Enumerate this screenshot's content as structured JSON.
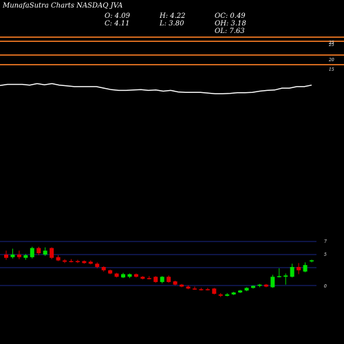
{
  "header": {
    "brand": "MunafaSutra Charts NASDAQ JVA",
    "open": "O: 4.09",
    "high": "H: 4.22",
    "close": "C: 4.11",
    "low": "L: 3.80",
    "oc": "OC: 0.49",
    "oh": "OH: 3.18",
    "ol": "OL: 7.63"
  },
  "colors": {
    "background": "#000000",
    "up": "#00e000",
    "down": "#e00000",
    "price_line": "#ffffff",
    "band_lines": "#d2691e",
    "grid_lines": "#1c2a8c"
  },
  "chart_data": [
    {
      "type": "line",
      "panel": "upper",
      "y_ticks": [
        "25",
        "25",
        "20",
        "15"
      ],
      "band_levels": [
        25,
        25,
        20
      ],
      "series": [
        {
          "values": [
            15.25,
            15.4,
            15.4,
            15.4,
            15.3,
            15.5,
            15.35,
            15.5,
            15.3,
            15.2,
            15.1,
            15.1,
            15.1,
            15.1,
            14.9,
            14.7,
            14.6,
            14.6,
            14.65,
            14.7,
            14.6,
            14.65,
            14.5,
            14.6,
            14.4,
            14.35,
            14.35,
            14.35,
            14.25,
            14.15,
            14.15,
            14.2,
            14.3,
            14.3,
            14.35,
            14.5,
            14.6,
            14.65,
            14.9,
            14.9,
            15.1,
            15.1,
            15.3
          ]
        }
      ]
    },
    {
      "type": "candlestick",
      "panel": "lower",
      "y_ticks": [
        "7",
        "5",
        "0"
      ],
      "candles": [
        {
          "o": 5.0,
          "h": 5.6,
          "l": 4.2,
          "c": 4.5
        },
        {
          "o": 4.6,
          "h": 5.9,
          "l": 4.4,
          "c": 5.0
        },
        {
          "o": 5.0,
          "h": 5.6,
          "l": 4.3,
          "c": 4.6
        },
        {
          "o": 4.5,
          "h": 5.1,
          "l": 4.2,
          "c": 4.9
        },
        {
          "o": 4.6,
          "h": 6.2,
          "l": 4.4,
          "c": 6.0
        },
        {
          "o": 6.0,
          "h": 6.2,
          "l": 4.9,
          "c": 5.2
        },
        {
          "o": 5.0,
          "h": 6.1,
          "l": 4.8,
          "c": 5.6
        },
        {
          "o": 6.0,
          "h": 6.1,
          "l": 4.3,
          "c": 4.5
        },
        {
          "o": 4.6,
          "h": 4.9,
          "l": 4.0,
          "c": 4.1
        },
        {
          "o": 4.1,
          "h": 4.3,
          "l": 3.7,
          "c": 3.9
        },
        {
          "o": 4.0,
          "h": 4.3,
          "l": 3.8,
          "c": 3.9
        },
        {
          "o": 4.0,
          "h": 4.2,
          "l": 3.7,
          "c": 3.9
        },
        {
          "o": 4.0,
          "h": 4.1,
          "l": 3.6,
          "c": 3.7
        },
        {
          "o": 3.9,
          "h": 4.1,
          "l": 3.5,
          "c": 3.6
        },
        {
          "o": 3.6,
          "h": 3.8,
          "l": 2.9,
          "c": 3.1
        },
        {
          "o": 3.1,
          "h": 3.2,
          "l": 2.4,
          "c": 2.6
        },
        {
          "o": 2.6,
          "h": 2.7,
          "l": 2.0,
          "c": 2.1
        },
        {
          "o": 2.1,
          "h": 2.2,
          "l": 1.5,
          "c": 1.6
        },
        {
          "o": 1.5,
          "h": 2.2,
          "l": 1.4,
          "c": 2.0
        },
        {
          "o": 1.6,
          "h": 2.1,
          "l": 1.4,
          "c": 2.0
        },
        {
          "o": 2.0,
          "h": 2.1,
          "l": 1.5,
          "c": 1.6
        },
        {
          "o": 1.6,
          "h": 1.7,
          "l": 1.2,
          "c": 1.3
        },
        {
          "o": 1.4,
          "h": 1.7,
          "l": 1.2,
          "c": 1.3
        },
        {
          "o": 1.6,
          "h": 1.7,
          "l": 0.7,
          "c": 0.8
        },
        {
          "o": 0.8,
          "h": 1.7,
          "l": 0.6,
          "c": 1.6
        },
        {
          "o": 1.6,
          "h": 1.8,
          "l": 0.7,
          "c": 0.8
        },
        {
          "o": 0.9,
          "h": 1.0,
          "l": 0.3,
          "c": 0.4
        },
        {
          "o": 0.4,
          "h": 0.5,
          "l": 0.0,
          "c": 0.1
        },
        {
          "o": 0.1,
          "h": 0.3,
          "l": -0.3,
          "c": -0.2
        },
        {
          "o": -0.2,
          "h": 0.1,
          "l": -0.4,
          "c": -0.3
        },
        {
          "o": -0.3,
          "h": -0.1,
          "l": -0.5,
          "c": -0.4
        },
        {
          "o": -0.3,
          "h": -0.1,
          "l": -0.5,
          "c": -0.4
        },
        {
          "o": -0.2,
          "h": -0.1,
          "l": -1.1,
          "c": -1.0
        },
        {
          "o": -1.1,
          "h": -0.9,
          "l": -1.5,
          "c": -1.3
        },
        {
          "o": -1.3,
          "h": -0.9,
          "l": -1.4,
          "c": -1.1
        },
        {
          "o": -1.1,
          "h": -0.7,
          "l": -1.2,
          "c": -0.8
        },
        {
          "o": -0.8,
          "h": -0.4,
          "l": -0.9,
          "c": -0.5
        },
        {
          "o": -0.5,
          "h": 0.0,
          "l": -0.6,
          "c": -0.1
        },
        {
          "o": -0.1,
          "h": 0.3,
          "l": -0.2,
          "c": 0.2
        },
        {
          "o": 0.2,
          "h": 0.5,
          "l": 0.0,
          "c": 0.4
        },
        {
          "o": 0.4,
          "h": 0.5,
          "l": 0.0,
          "c": 0.1
        },
        {
          "o": 0.0,
          "h": 1.9,
          "l": -0.1,
          "c": 1.6
        },
        {
          "o": 1.6,
          "h": 2.9,
          "l": 1.5,
          "c": 1.7
        },
        {
          "o": 1.6,
          "h": 2.1,
          "l": 0.4,
          "c": 1.8
        },
        {
          "o": 1.6,
          "h": 3.6,
          "l": 1.5,
          "c": 3.1
        },
        {
          "o": 3.1,
          "h": 3.7,
          "l": 2.0,
          "c": 2.6
        },
        {
          "o": 2.4,
          "h": 3.8,
          "l": 2.3,
          "c": 3.4
        },
        {
          "o": 4.09,
          "h": 4.22,
          "l": 3.8,
          "c": 4.11
        }
      ]
    }
  ]
}
